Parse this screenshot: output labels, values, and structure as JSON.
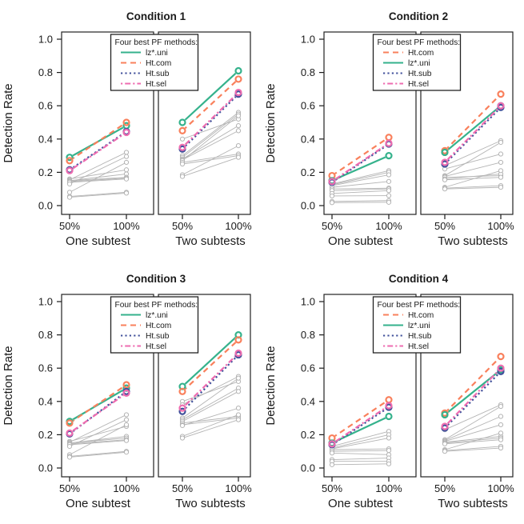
{
  "figure": {
    "background": "#ffffff",
    "text_color": "#1a1a1a",
    "panel_border_color": "#222222",
    "other_methods_color": "#b4b4b4"
  },
  "methods": {
    "lz*.uni": {
      "color": "#35b28c",
      "linestyle": "solid"
    },
    "Ht.com": {
      "color": "#f9805c",
      "linestyle": "dashed"
    },
    "Ht.sub": {
      "color": "#41519b",
      "linestyle": "dotted"
    },
    "Ht.sel": {
      "color": "#ee6cb0",
      "linestyle": "dotdash"
    }
  },
  "chart_data": [
    {
      "type": "line",
      "title": "Condition 1",
      "ylabel": "Detection Rate",
      "ylim": [
        0,
        1
      ],
      "yticks": [
        "0.0",
        "0.2",
        "0.4",
        "0.6",
        "0.8",
        "1.0"
      ],
      "x_tick_labels": [
        "50%",
        "100%"
      ],
      "legend": {
        "title": "Four best PF methods:",
        "entries": [
          "lz*.uni",
          "Ht.com",
          "Ht.sub",
          "Ht.sel"
        ]
      },
      "panels": [
        {
          "caption": "One subtest",
          "highlight_series": {
            "lz*.uni": [
              0.29,
              0.48
            ],
            "Ht.com": [
              0.27,
              0.5
            ],
            "Ht.sub": [
              0.215,
              0.445
            ],
            "Ht.sel": [
              0.21,
              0.44
            ]
          },
          "other_methods_lines": [
            [
              0.16,
              0.215
            ],
            [
              0.155,
              0.32
            ],
            [
              0.15,
              0.19
            ],
            [
              0.15,
              0.17
            ],
            [
              0.145,
              0.165
            ],
            [
              0.14,
              0.16
            ],
            [
              0.13,
              0.295
            ],
            [
              0.08,
              0.26
            ],
            [
              0.055,
              0.08
            ],
            [
              0.05,
              0.075
            ]
          ]
        },
        {
          "caption": "Two subtests",
          "highlight_series": {
            "lz*.uni": [
              0.5,
              0.81
            ],
            "Ht.com": [
              0.45,
              0.76
            ],
            "Ht.sub": [
              0.34,
              0.67
            ],
            "Ht.sel": [
              0.35,
              0.68
            ]
          },
          "other_methods_lines": [
            [
              0.4,
              0.52
            ],
            [
              0.3,
              0.56
            ],
            [
              0.29,
              0.55
            ],
            [
              0.28,
              0.48
            ],
            [
              0.275,
              0.45
            ],
            [
              0.27,
              0.54
            ],
            [
              0.26,
              0.31
            ],
            [
              0.25,
              0.3
            ],
            [
              0.185,
              0.36
            ],
            [
              0.175,
              0.29
            ]
          ]
        }
      ]
    },
    {
      "type": "line",
      "title": "Condition 2",
      "ylabel": "Detection Rate",
      "ylim": [
        0,
        1
      ],
      "yticks": [
        "0.0",
        "0.2",
        "0.4",
        "0.6",
        "0.8",
        "1.0"
      ],
      "x_tick_labels": [
        "50%",
        "100%"
      ],
      "legend": {
        "title": "Four best PF methods:",
        "entries": [
          "Ht.com",
          "lz*.uni",
          "Ht.sub",
          "Ht.sel"
        ]
      },
      "panels": [
        {
          "caption": "One subtest",
          "highlight_series": {
            "Ht.com": [
              0.18,
              0.41
            ],
            "lz*.uni": [
              0.15,
              0.3
            ],
            "Ht.sub": [
              0.14,
              0.37
            ],
            "Ht.sel": [
              0.145,
              0.375
            ]
          },
          "other_methods_lines": [
            [
              0.13,
              0.21
            ],
            [
              0.125,
              0.2
            ],
            [
              0.12,
              0.185
            ],
            [
              0.11,
              0.145
            ],
            [
              0.1,
              0.105
            ],
            [
              0.09,
              0.1
            ],
            [
              0.073,
              0.09
            ],
            [
              0.058,
              0.06
            ],
            [
              0.025,
              0.03
            ],
            [
              0.018,
              0.02
            ]
          ]
        },
        {
          "caption": "Two subtests",
          "highlight_series": {
            "Ht.com": [
              0.33,
              0.67
            ],
            "lz*.uni": [
              0.32,
              0.6
            ],
            "Ht.sub": [
              0.25,
              0.59
            ],
            "Ht.sel": [
              0.26,
              0.6
            ]
          },
          "other_methods_lines": [
            [
              0.24,
              0.39
            ],
            [
              0.22,
              0.31
            ],
            [
              0.18,
              0.38
            ],
            [
              0.175,
              0.26
            ],
            [
              0.17,
              0.18
            ],
            [
              0.16,
              0.19
            ],
            [
              0.155,
              0.17
            ],
            [
              0.11,
              0.21
            ],
            [
              0.105,
              0.12
            ],
            [
              0.1,
              0.11
            ]
          ]
        }
      ]
    },
    {
      "type": "line",
      "title": "Condition 3",
      "ylabel": "Detection Rate",
      "ylim": [
        0,
        1
      ],
      "yticks": [
        "0.0",
        "0.2",
        "0.4",
        "0.6",
        "0.8",
        "1.0"
      ],
      "x_tick_labels": [
        "50%",
        "100%"
      ],
      "legend": {
        "title": "Four best PF methods:",
        "entries": [
          "lz*.uni",
          "Ht.com",
          "Ht.sub",
          "Ht.sel"
        ]
      },
      "panels": [
        {
          "caption": "One subtest",
          "highlight_series": {
            "lz*.uni": [
              0.28,
              0.48
            ],
            "Ht.com": [
              0.27,
              0.5
            ],
            "Ht.sub": [
              0.205,
              0.46
            ],
            "Ht.sel": [
              0.21,
              0.45
            ]
          },
          "other_methods_lines": [
            [
              0.16,
              0.25
            ],
            [
              0.155,
              0.32
            ],
            [
              0.15,
              0.19
            ],
            [
              0.15,
              0.18
            ],
            [
              0.145,
              0.17
            ],
            [
              0.14,
              0.165
            ],
            [
              0.13,
              0.29
            ],
            [
              0.08,
              0.26
            ],
            [
              0.07,
              0.1
            ],
            [
              0.065,
              0.095
            ]
          ]
        },
        {
          "caption": "Two subtests",
          "highlight_series": {
            "lz*.uni": [
              0.49,
              0.8
            ],
            "Ht.com": [
              0.46,
              0.77
            ],
            "Ht.sub": [
              0.34,
              0.68
            ],
            "Ht.sel": [
              0.36,
              0.69
            ]
          },
          "other_methods_lines": [
            [
              0.4,
              0.52
            ],
            [
              0.38,
              0.55
            ],
            [
              0.3,
              0.54
            ],
            [
              0.29,
              0.48
            ],
            [
              0.28,
              0.46
            ],
            [
              0.27,
              0.31
            ],
            [
              0.26,
              0.3
            ],
            [
              0.255,
              0.36
            ],
            [
              0.19,
              0.32
            ],
            [
              0.18,
              0.29
            ]
          ]
        }
      ]
    },
    {
      "type": "line",
      "title": "Condition 4",
      "ylabel": "Detection Rate",
      "ylim": [
        0,
        1
      ],
      "yticks": [
        "0.0",
        "0.2",
        "0.4",
        "0.6",
        "0.8",
        "1.0"
      ],
      "x_tick_labels": [
        "50%",
        "100%"
      ],
      "legend": {
        "title": "Four best PF methods:",
        "entries": [
          "Ht.com",
          "lz*.uni",
          "Ht.sub",
          "Ht.sel"
        ]
      },
      "panels": [
        {
          "caption": "One subtest",
          "highlight_series": {
            "Ht.com": [
              0.18,
              0.41
            ],
            "lz*.uni": [
              0.15,
              0.31
            ],
            "Ht.sub": [
              0.14,
              0.365
            ],
            "Ht.sel": [
              0.145,
              0.375
            ]
          },
          "other_methods_lines": [
            [
              0.13,
              0.22
            ],
            [
              0.12,
              0.2
            ],
            [
              0.115,
              0.18
            ],
            [
              0.11,
              0.115
            ],
            [
              0.1,
              0.105
            ],
            [
              0.09,
              0.08
            ],
            [
              0.05,
              0.06
            ],
            [
              0.04,
              0.04
            ],
            [
              0.02,
              0.025
            ]
          ]
        },
        {
          "caption": "Two subtests",
          "highlight_series": {
            "Ht.com": [
              0.33,
              0.67
            ],
            "lz*.uni": [
              0.32,
              0.59
            ],
            "Ht.sub": [
              0.24,
              0.58
            ],
            "Ht.sel": [
              0.25,
              0.6
            ]
          },
          "other_methods_lines": [
            [
              0.23,
              0.38
            ],
            [
              0.17,
              0.37
            ],
            [
              0.165,
              0.31
            ],
            [
              0.16,
              0.26
            ],
            [
              0.155,
              0.19
            ],
            [
              0.15,
              0.18
            ],
            [
              0.145,
              0.17
            ],
            [
              0.11,
              0.21
            ],
            [
              0.105,
              0.13
            ],
            [
              0.1,
              0.12
            ]
          ]
        }
      ]
    }
  ]
}
